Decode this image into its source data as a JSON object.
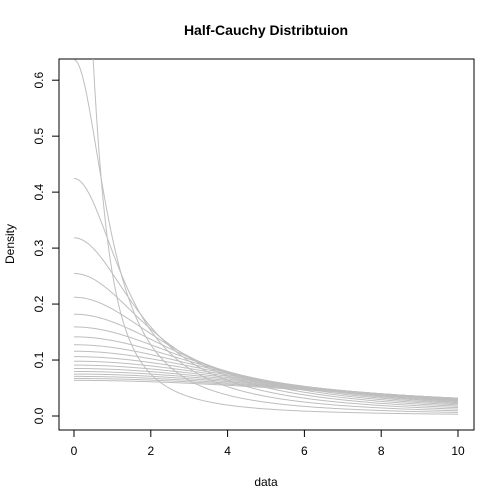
{
  "chart_data": {
    "type": "line",
    "title": "Half-Cauchy Distribtuion",
    "xlabel": "data",
    "ylabel": "Density",
    "xlim": [
      0,
      10
    ],
    "ylim": [
      0,
      0.62
    ],
    "x_ticks": [
      "0",
      "2",
      "4",
      "6",
      "8",
      "10"
    ],
    "y_ticks": [
      "0.0",
      "0.1",
      "0.2",
      "0.3",
      "0.4",
      "0.5",
      "0.6"
    ],
    "grid": false,
    "legend": "none",
    "line_color": "#bebebe",
    "distribution": "half-cauchy",
    "scale_parameters": [
      0.5,
      1,
      1.5,
      2,
      2.5,
      3,
      3.5,
      4,
      4.5,
      5,
      5.5,
      6,
      6.5,
      7,
      7.5,
      8,
      8.5,
      9,
      9.5,
      10
    ],
    "x_range": [
      0,
      10
    ]
  }
}
